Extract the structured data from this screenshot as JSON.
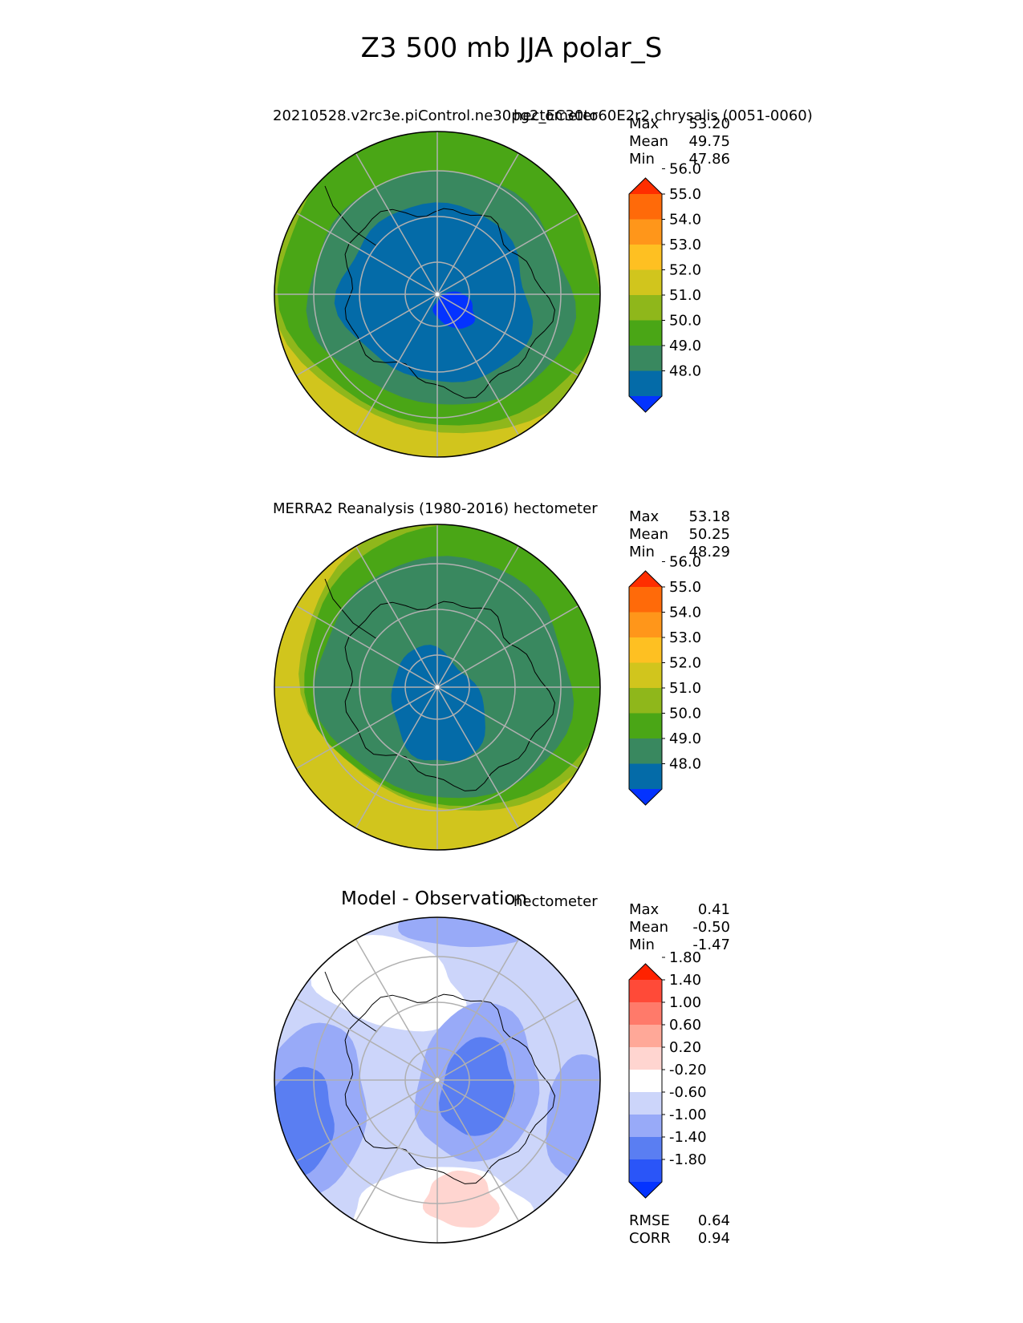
{
  "figure": {
    "title": "Z3 500 mb JJA polar_S"
  },
  "panels": [
    {
      "title_left": "20210528.v2rc3e.piControl.ne30pg2_EC30to60E2r2.chrysalis (0051-0060)",
      "title_right": "hectometer",
      "stats": [
        {
          "label": "Max",
          "value": "53.20"
        },
        {
          "label": "Mean",
          "value": "49.75"
        },
        {
          "label": "Min",
          "value": "47.86"
        }
      ],
      "colorbar": {
        "levels": [
          "48.0",
          "49.0",
          "50.0",
          "51.0",
          "52.0",
          "53.0",
          "54.0",
          "55.0",
          "56.0"
        ],
        "colors": [
          "#0433ff",
          "#046ba8",
          "#39885f",
          "#4aa616",
          "#8fb71b",
          "#d1c51d",
          "#fec022",
          "#ff961a",
          "#ff6a09",
          "#ff2e00"
        ]
      }
    },
    {
      "title_left": "MERRA2 Reanalysis (1980-2016)",
      "title_right": "hectometer",
      "stats": [
        {
          "label": "Max",
          "value": "53.18"
        },
        {
          "label": "Mean",
          "value": "50.25"
        },
        {
          "label": "Min",
          "value": "48.29"
        }
      ],
      "colorbar": {
        "levels": [
          "48.0",
          "49.0",
          "50.0",
          "51.0",
          "52.0",
          "53.0",
          "54.0",
          "55.0",
          "56.0"
        ],
        "colors": [
          "#0433ff",
          "#046ba8",
          "#39885f",
          "#4aa616",
          "#8fb71b",
          "#d1c51d",
          "#fec022",
          "#ff961a",
          "#ff6a09",
          "#ff2e00"
        ]
      }
    },
    {
      "title_left": "Model - Observation",
      "title_right": "hectometer",
      "stats": [
        {
          "label": "Max",
          "value": "0.41"
        },
        {
          "label": "Mean",
          "value": "-0.50"
        },
        {
          "label": "Min",
          "value": "-1.47"
        }
      ],
      "colorbar": {
        "levels": [
          "-1.80",
          "-1.40",
          "-1.00",
          "-0.60",
          "-0.20",
          "0.20",
          "0.60",
          "1.00",
          "1.40",
          "1.80"
        ],
        "colors": [
          "#0433ff",
          "#2a55f8",
          "#5a7ef2",
          "#98aaf8",
          "#ccd5fa",
          "#ffffff",
          "#ffd5d0",
          "#ffa898",
          "#ff7a6a",
          "#ff4a38",
          "#ff2200"
        ]
      },
      "error_stats": [
        {
          "label": "RMSE",
          "value": "0.64"
        },
        {
          "label": "CORR",
          "value": "0.94"
        }
      ]
    }
  ],
  "chart_data": [
    {
      "type": "heatmap",
      "title": "20210528.v2rc3e.piControl.ne30pg2_EC30to60E2r2.chrysalis (0051-0060)",
      "projection": "south polar stereographic",
      "units": "hectometer",
      "max": 53.2,
      "mean": 49.75,
      "min": 47.86,
      "contour_levels": [
        48.0,
        49.0,
        50.0,
        51.0,
        52.0,
        53.0,
        54.0,
        55.0,
        56.0
      ],
      "colors": [
        "#0433ff",
        "#046ba8",
        "#39885f",
        "#4aa616",
        "#8fb71b",
        "#d1c51d",
        "#fec022",
        "#ff961a",
        "#ff6a09",
        "#ff2e00"
      ],
      "grid": true
    },
    {
      "type": "heatmap",
      "title": "MERRA2 Reanalysis (1980-2016)",
      "projection": "south polar stereographic",
      "units": "hectometer",
      "max": 53.18,
      "mean": 50.25,
      "min": 48.29,
      "contour_levels": [
        48.0,
        49.0,
        50.0,
        51.0,
        52.0,
        53.0,
        54.0,
        55.0,
        56.0
      ],
      "colors": [
        "#0433ff",
        "#046ba8",
        "#39885f",
        "#4aa616",
        "#8fb71b",
        "#d1c51d",
        "#fec022",
        "#ff961a",
        "#ff6a09",
        "#ff2e00"
      ],
      "grid": true
    },
    {
      "type": "heatmap",
      "title": "Model - Observation",
      "projection": "south polar stereographic",
      "units": "hectometer",
      "max": 0.41,
      "mean": -0.5,
      "min": -1.47,
      "rmse": 0.64,
      "corr": 0.94,
      "contour_levels": [
        -1.8,
        -1.4,
        -1.0,
        -0.6,
        -0.2,
        0.2,
        0.6,
        1.0,
        1.4,
        1.8
      ],
      "colors": [
        "#0433ff",
        "#2a55f8",
        "#5a7ef2",
        "#98aaf8",
        "#ccd5fa",
        "#ffffff",
        "#ffd5d0",
        "#ffa898",
        "#ff7a6a",
        "#ff4a38",
        "#ff2200"
      ],
      "grid": true
    }
  ]
}
